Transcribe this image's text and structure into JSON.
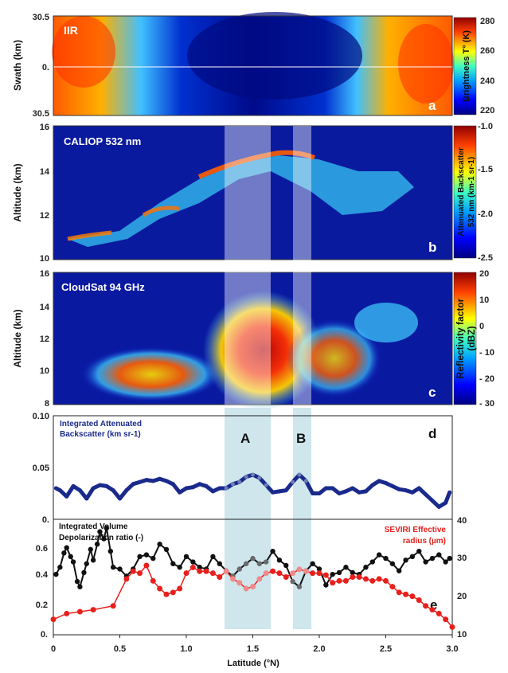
{
  "colors": {
    "bg": "#ffffff",
    "band_fill": "#c7e2ea",
    "iab_series": "#1a2a8c",
    "depol_series": "#111111",
    "seviri_series": "#e8201c",
    "panel_text": "#ffffff"
  },
  "panels": {
    "a": {
      "title": "IIR",
      "letter": "a",
      "ylabel": "Swath (km)",
      "yticks": [
        "30.5",
        "0.",
        "30.5"
      ],
      "colorbar_label": "Brightness T° (K)",
      "colorbar_ticks": [
        "280",
        "260",
        "240",
        "220"
      ]
    },
    "b": {
      "title": "CALIOP 532 nm",
      "letter": "b",
      "ylabel": "Altitude (km)",
      "yticks": [
        "16",
        "14",
        "12",
        "10"
      ],
      "colorbar_label_1": "Attenuated Backscatter",
      "colorbar_label_2": "532 nm (km-1 sr-1)",
      "colorbar_ticks": [
        "-1.0",
        "-1.5",
        "-2.0",
        "-2.5"
      ]
    },
    "c": {
      "title": "CloudSat 94 GHz",
      "letter": "c",
      "ylabel": "Altitude (km)",
      "yticks": [
        "16",
        "14",
        "12",
        "10",
        "8"
      ],
      "colorbar_label_1": "Reflectivity factor",
      "colorbar_label_2": "(dBZ)",
      "colorbar_ticks": [
        "20",
        "10",
        "0",
        "- 10",
        "- 20",
        "- 30"
      ]
    },
    "d": {
      "letter": "d",
      "legend_1": "Integrated Attenuated",
      "legend_2": "Backscatter (km sr-1)",
      "yticks": [
        "0.10",
        "0.05",
        "0."
      ],
      "band_a": "A",
      "band_b": "B"
    },
    "e": {
      "letter": "e",
      "legend_left_1": "Integrated Volume",
      "legend_left_2": "Depolarization ratio (-)",
      "legend_right_1": "SEVIRI Effective",
      "legend_right_2": "radius (µm)",
      "yticks_left": [
        "0.6",
        "0.4",
        "0.2",
        "0."
      ],
      "yticks_right": [
        "40",
        "30",
        "20",
        "10"
      ]
    }
  },
  "xaxis": {
    "label": "Latitude (°N)",
    "ticks": [
      "0",
      "0.5",
      "1.0",
      "1.5",
      "2.0",
      "2.5",
      "3.0"
    ]
  },
  "chart_data": [
    {
      "type": "line",
      "panel": "d",
      "xlim": [
        0,
        3.0
      ],
      "ylim": [
        0,
        0.1
      ],
      "series": [
        {
          "name": "Integrated Attenuated Backscatter (km sr-1)",
          "x": [
            0.02,
            0.05,
            0.1,
            0.15,
            0.2,
            0.25,
            0.3,
            0.35,
            0.4,
            0.45,
            0.5,
            0.55,
            0.6,
            0.65,
            0.7,
            0.75,
            0.8,
            0.85,
            0.9,
            0.95,
            1.0,
            1.05,
            1.1,
            1.15,
            1.2,
            1.25,
            1.3,
            1.35,
            1.4,
            1.45,
            1.5,
            1.55,
            1.6,
            1.65,
            1.7,
            1.75,
            1.8,
            1.85,
            1.9,
            1.95,
            2.0,
            2.05,
            2.1,
            2.15,
            2.2,
            2.25,
            2.3,
            2.35,
            2.4,
            2.45,
            2.5,
            2.55,
            2.6,
            2.65,
            2.7,
            2.75,
            2.8,
            2.85,
            2.9,
            2.95,
            2.98
          ],
          "y": [
            0.03,
            0.028,
            0.022,
            0.032,
            0.028,
            0.02,
            0.03,
            0.033,
            0.032,
            0.028,
            0.02,
            0.028,
            0.034,
            0.036,
            0.038,
            0.037,
            0.039,
            0.037,
            0.034,
            0.026,
            0.03,
            0.031,
            0.034,
            0.032,
            0.027,
            0.03,
            0.03,
            0.034,
            0.036,
            0.041,
            0.043,
            0.04,
            0.033,
            0.026,
            0.027,
            0.028,
            0.036,
            0.043,
            0.037,
            0.025,
            0.025,
            0.03,
            0.03,
            0.025,
            0.027,
            0.03,
            0.026,
            0.027,
            0.033,
            0.037,
            0.035,
            0.032,
            0.029,
            0.028,
            0.026,
            0.03,
            0.024,
            0.018,
            0.012,
            0.016,
            0.026
          ]
        }
      ]
    },
    {
      "type": "line",
      "panel": "e",
      "xlim": [
        0,
        3.0
      ],
      "ylim_left": [
        0,
        0.65
      ],
      "ylim_right": [
        10,
        40
      ],
      "series": [
        {
          "name": "Integrated Volume Depolarization ratio (-)",
          "axis": "left",
          "x": [
            0.02,
            0.05,
            0.08,
            0.1,
            0.13,
            0.15,
            0.18,
            0.2,
            0.23,
            0.25,
            0.28,
            0.3,
            0.33,
            0.35,
            0.38,
            0.4,
            0.43,
            0.45,
            0.5,
            0.55,
            0.6,
            0.65,
            0.7,
            0.75,
            0.8,
            0.85,
            0.9,
            0.95,
            1.0,
            1.05,
            1.1,
            1.15,
            1.2,
            1.25,
            1.3,
            1.35,
            1.4,
            1.45,
            1.5,
            1.55,
            1.6,
            1.65,
            1.7,
            1.75,
            1.8,
            1.85,
            1.9,
            1.95,
            2.0,
            2.05,
            2.1,
            2.15,
            2.2,
            2.25,
            2.3,
            2.35,
            2.4,
            2.45,
            2.5,
            2.55,
            2.6,
            2.65,
            2.7,
            2.75,
            2.8,
            2.85,
            2.9,
            2.95,
            2.98
          ],
          "y": [
            0.34,
            0.38,
            0.46,
            0.49,
            0.44,
            0.41,
            0.3,
            0.27,
            0.35,
            0.4,
            0.48,
            0.42,
            0.51,
            0.58,
            0.54,
            0.6,
            0.47,
            0.38,
            0.37,
            0.33,
            0.37,
            0.44,
            0.45,
            0.43,
            0.51,
            0.48,
            0.4,
            0.38,
            0.44,
            0.41,
            0.38,
            0.37,
            0.44,
            0.4,
            0.36,
            0.33,
            0.37,
            0.4,
            0.43,
            0.4,
            0.41,
            0.47,
            0.42,
            0.39,
            0.3,
            0.27,
            0.36,
            0.4,
            0.37,
            0.28,
            0.34,
            0.35,
            0.38,
            0.35,
            0.34,
            0.38,
            0.41,
            0.45,
            0.43,
            0.4,
            0.36,
            0.42,
            0.44,
            0.47,
            0.41,
            0.43,
            0.45,
            0.41,
            0.43
          ]
        },
        {
          "name": "SEVIRI Effective radius (µm)",
          "axis": "right",
          "x": [
            0.0,
            0.1,
            0.2,
            0.3,
            0.45,
            0.55,
            0.6,
            0.65,
            0.7,
            0.75,
            0.8,
            0.85,
            0.9,
            0.95,
            1.0,
            1.05,
            1.1,
            1.15,
            1.2,
            1.25,
            1.3,
            1.35,
            1.4,
            1.45,
            1.5,
            1.55,
            1.6,
            1.65,
            1.7,
            1.75,
            1.8,
            1.85,
            1.9,
            1.95,
            2.0,
            2.05,
            2.1,
            2.15,
            2.2,
            2.25,
            2.3,
            2.35,
            2.4,
            2.45,
            2.5,
            2.55,
            2.6,
            2.65,
            2.7,
            2.75,
            2.8,
            2.85,
            2.9,
            2.95,
            3.0
          ],
          "y": [
            14.0,
            15.5,
            16.0,
            16.5,
            17.5,
            24.5,
            26.5,
            26.0,
            28.0,
            24.0,
            22.0,
            20.5,
            21.0,
            22.0,
            26.0,
            27.5,
            26.5,
            26.5,
            26.0,
            25.0,
            26.5,
            24.5,
            23.5,
            22.0,
            22.5,
            24.5,
            26.0,
            26.5,
            26.0,
            25.0,
            26.0,
            27.0,
            26.5,
            26.0,
            26.0,
            25.5,
            23.5,
            24.0,
            24.0,
            25.0,
            25.0,
            24.5,
            24.0,
            24.5,
            24.0,
            22.5,
            21.0,
            20.5,
            20.0,
            19.0,
            17.5,
            16.5,
            15.5,
            14.0,
            12.0
          ]
        }
      ]
    }
  ]
}
